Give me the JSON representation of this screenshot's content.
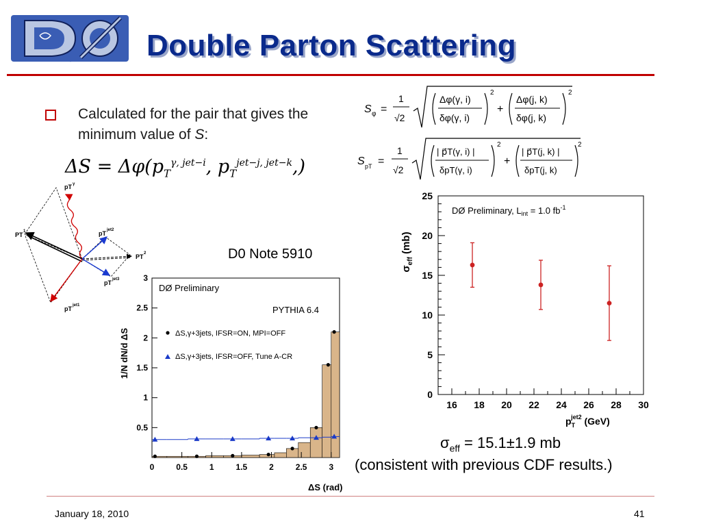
{
  "slide": {
    "logo_text": "DØ",
    "title": "Double Parton Scattering",
    "bullet": {
      "text_main": "Calculated for the pair that gives the minimum value of ",
      "text_var": "S",
      "text_end": ":"
    },
    "formula_deltaS": {
      "lhs": "ΔS = Δφ(p",
      "t": "T",
      "sup1": "γ, jet−i",
      "mid": ", p",
      "sup2": "jet−j, jet−k",
      "rhs": ",)"
    },
    "formula_S_phi": {
      "lhs": "S",
      "sub": "φ",
      "eq": "=",
      "coef_num": "1",
      "coef_den": "√2",
      "t1_num": "Δφ(γ, i)",
      "t1_den": "δφ(γ, i)",
      "plus": "+",
      "t2_num": "Δφ(j, k)",
      "t2_den": "δφ(j, k)",
      "pow": "2"
    },
    "formula_S_pT": {
      "lhs": "S",
      "sub": "pT",
      "eq": "=",
      "coef_num": "1",
      "coef_den": "√2",
      "t1_num": "| p⃗T(γ, i) |",
      "t1_den": "δpT(γ, i)",
      "plus": "+",
      "t2_num": "| p⃗T(j, k) |",
      "t2_den": "δpT(j, k)",
      "pow": "2"
    },
    "diagram_labels": {
      "p_gamma": "pT",
      "p_gamma_sup": "γ",
      "p1": "PT",
      "p1_sup": "1",
      "p_jet2": "pT",
      "p_jet2_sup": "jet2",
      "p2": "PT",
      "p2_sup": "2",
      "p_jet3": "pT",
      "p_jet3_sup": "jet3",
      "p_jet1": "pT",
      "p_jet1_sup": "jet1"
    },
    "note": "D0 Note 5910",
    "sigma_text_pre": "σ",
    "sigma_text_sub": "eff",
    "sigma_text_post": " = 15.1±1.9 mb",
    "consistent_text": "(consistent with previous CDF results.)",
    "date": "January 18, 2010",
    "page": "41"
  },
  "chart_data": [
    {
      "type": "histogram",
      "title": "",
      "annotations": [
        "DØ Preliminary",
        "PYTHIA 6.4"
      ],
      "xlabel": "ΔS (rad)",
      "ylabel": "1/N dN/d ΔS",
      "xlim": [
        0,
        3.14
      ],
      "ylim": [
        0,
        3
      ],
      "xticks": [
        "0",
        "0.5",
        "1",
        "1.5",
        "2",
        "2.5",
        "3"
      ],
      "yticks": [
        "0.5",
        "1",
        "1.5",
        "2",
        "2.5",
        "3"
      ],
      "legend": "top-left",
      "series": [
        {
          "name": "ΔS,γ+3jets, IFSR=ON, MPI=OFF",
          "marker": "circle",
          "style": "filled histogram",
          "color": "#d9b58a",
          "x": [
            0.05,
            0.45,
            0.75,
            1.05,
            1.35,
            1.65,
            1.95,
            2.15,
            2.35,
            2.55,
            2.75,
            2.95,
            3.05
          ],
          "values": [
            0.02,
            0.02,
            0.02,
            0.03,
            0.03,
            0.04,
            0.05,
            0.08,
            0.15,
            0.25,
            0.5,
            1.55,
            2.1
          ]
        },
        {
          "name": "ΔS,γ+3jets, IFSR=OFF, Tune A-CR",
          "marker": "triangle",
          "style": "line histogram",
          "color": "#1a3ac8",
          "x": [
            0.05,
            0.45,
            0.75,
            1.05,
            1.35,
            1.65,
            1.95,
            2.15,
            2.35,
            2.55,
            2.75,
            2.95,
            3.05
          ],
          "values": [
            0.3,
            0.3,
            0.31,
            0.31,
            0.31,
            0.31,
            0.32,
            0.32,
            0.32,
            0.33,
            0.33,
            0.34,
            0.35
          ]
        }
      ]
    },
    {
      "type": "scatter",
      "title": "",
      "annotation": "DØ Preliminary,  L",
      "annotation_sub": "int",
      "annotation_end": " = 1.0 fb",
      "annotation_sup": "-1",
      "xlabel": "p",
      "xlabel_sub": "T",
      "xlabel_sup": "jet2",
      "xlabel_unit": " (GeV)",
      "ylabel": "σ",
      "ylabel_sub": "eff",
      "ylabel_unit": " (mb)",
      "xlim": [
        15,
        30
      ],
      "ylim": [
        0,
        25
      ],
      "xticks": [
        "16",
        "18",
        "20",
        "22",
        "24",
        "26",
        "28",
        "30"
      ],
      "yticks": [
        "0",
        "5",
        "10",
        "15",
        "20",
        "25"
      ],
      "color": "#cc2222",
      "points": [
        {
          "x": 17.5,
          "y": 16.3,
          "err": 2.8
        },
        {
          "x": 22.5,
          "y": 13.8,
          "err": 3.1
        },
        {
          "x": 27.5,
          "y": 11.5,
          "err": 4.7
        }
      ]
    }
  ]
}
